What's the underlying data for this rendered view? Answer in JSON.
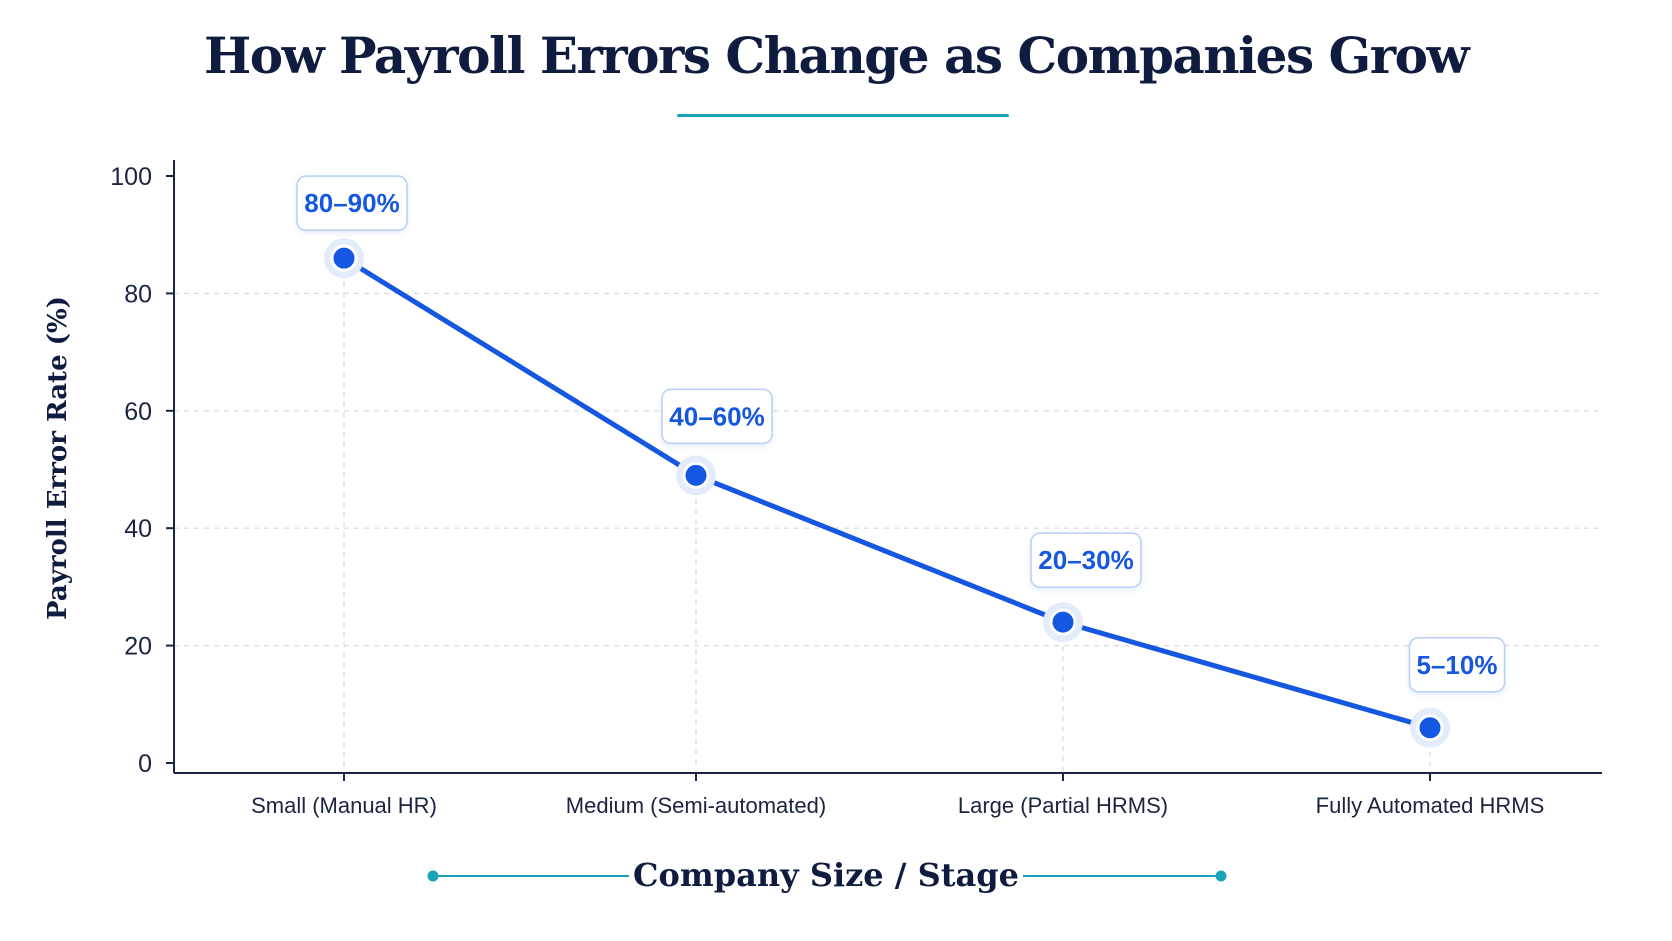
{
  "chart_data": {
    "type": "line",
    "title": "How Payroll Errors Change as Companies Grow",
    "xlabel": "Company Size / Stage",
    "ylabel": "Payroll Error Rate (%)",
    "categories": [
      "Small (Manual HR)",
      "Medium (Semi-automated)",
      "Large (Partial HRMS)",
      "Fully Automated HRMS"
    ],
    "series": [
      {
        "values": [
          86,
          49,
          24,
          6
        ],
        "data_labels": [
          "80–90%",
          "40–60%",
          "20–30%",
          "5–10%"
        ]
      }
    ],
    "yticks": [
      "0",
      "20",
      "40",
      "60",
      "80",
      "100"
    ],
    "ylim": [
      0,
      100
    ],
    "grid": true,
    "legend": "none",
    "colors": {
      "line": "#1557e0",
      "title": "#0f1c3f",
      "accent": "#1aa3b8",
      "grid": "#d6d9df"
    }
  }
}
